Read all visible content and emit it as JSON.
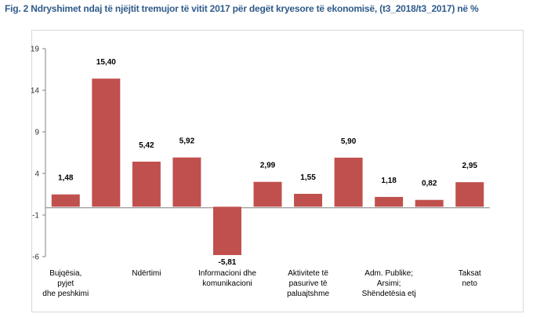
{
  "title": "Fig. 2 Ndryshimet ndaj të njëjtit tremujor të vitit 2017 për degët kryesore të ekonomisë, (t3_2018/t3_2017) në %",
  "chart_data": {
    "type": "bar",
    "title": "Fig. 2 Ndryshimet ndaj të njëjtit tremujor të vitit 2017 për degët kryesore të ekonomisë, (t3_2018/t3_2017) në %",
    "values": [
      1.48,
      15.4,
      5.42,
      5.92,
      -5.81,
      2.99,
      1.55,
      5.9,
      1.18,
      0.82,
      2.95
    ],
    "value_labels": [
      "1,48",
      "15,40",
      "5,42",
      "5,92",
      "-5,81",
      "2,99",
      "1,55",
      "5,90",
      "1,18",
      "0,82",
      "2,95"
    ],
    "category_labels": [
      [
        "Bujqësia,",
        "pyjet",
        "dhe peshkimi"
      ],
      [
        "Ndërtimi"
      ],
      [
        "Informacioni dhe",
        "komunikacioni"
      ],
      [
        "Aktivitete të",
        "pasurive të",
        "paluajtshme"
      ],
      [
        "Adm. Publike;",
        "Arsimi;",
        "Shëndetësia etj"
      ],
      [
        "Taksat",
        "neto"
      ]
    ],
    "yticks": [
      19,
      14,
      9,
      4,
      -1,
      -6
    ],
    "ylim": [
      -6,
      19
    ],
    "grid": false,
    "legend": "none",
    "bar_color": "#c0504d",
    "xlabel": "",
    "ylabel": ""
  }
}
